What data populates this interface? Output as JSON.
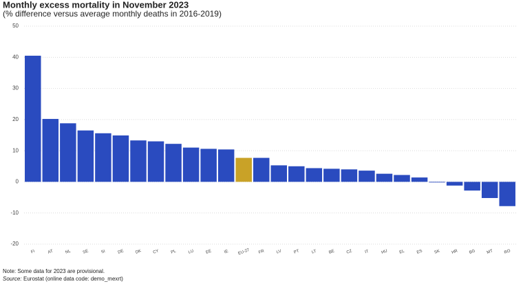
{
  "chart_data": {
    "type": "bar",
    "title": "Monthly excess mortality in November 2023",
    "subtitle": "(% difference versus average monthly deaths in 2016-2019)",
    "categories": [
      "FI",
      "AT",
      "NL",
      "SE",
      "SI",
      "DE",
      "DK",
      "CY",
      "PL",
      "LU",
      "EE",
      "IE",
      "EU-27",
      "FR",
      "LV",
      "PT",
      "LT",
      "BE",
      "CZ",
      "IT",
      "HU",
      "EL",
      "ES",
      "SK",
      "HR",
      "BG",
      "MT",
      "RO"
    ],
    "values": [
      40.5,
      20.2,
      18.8,
      16.5,
      15.6,
      14.9,
      13.3,
      13.0,
      12.2,
      11.0,
      10.6,
      10.4,
      7.7,
      7.7,
      5.3,
      5.0,
      4.4,
      4.2,
      4.0,
      3.6,
      2.6,
      2.2,
      1.4,
      -0.2,
      -1.2,
      -2.8,
      -5.2,
      -7.8
    ],
    "colors": [
      "#2a4bbf",
      "#2a4bbf",
      "#2a4bbf",
      "#2a4bbf",
      "#2a4bbf",
      "#2a4bbf",
      "#2a4bbf",
      "#2a4bbf",
      "#2a4bbf",
      "#2a4bbf",
      "#2a4bbf",
      "#2a4bbf",
      "#c9a227",
      "#2a4bbf",
      "#2a4bbf",
      "#2a4bbf",
      "#2a4bbf",
      "#2a4bbf",
      "#2a4bbf",
      "#2a4bbf",
      "#2a4bbf",
      "#2a4bbf",
      "#2a4bbf",
      "#2a4bbf",
      "#2a4bbf",
      "#2a4bbf",
      "#2a4bbf",
      "#2a4bbf"
    ],
    "ylim": [
      -20,
      50
    ],
    "yticks": [
      -20,
      -10,
      0,
      10,
      20,
      30,
      40,
      50
    ],
    "grid": true,
    "note": "Note: Some data for 2023 are provisional.",
    "source_label": "Source:",
    "source": "Eurostat (online data code: demo_mexrt)"
  }
}
